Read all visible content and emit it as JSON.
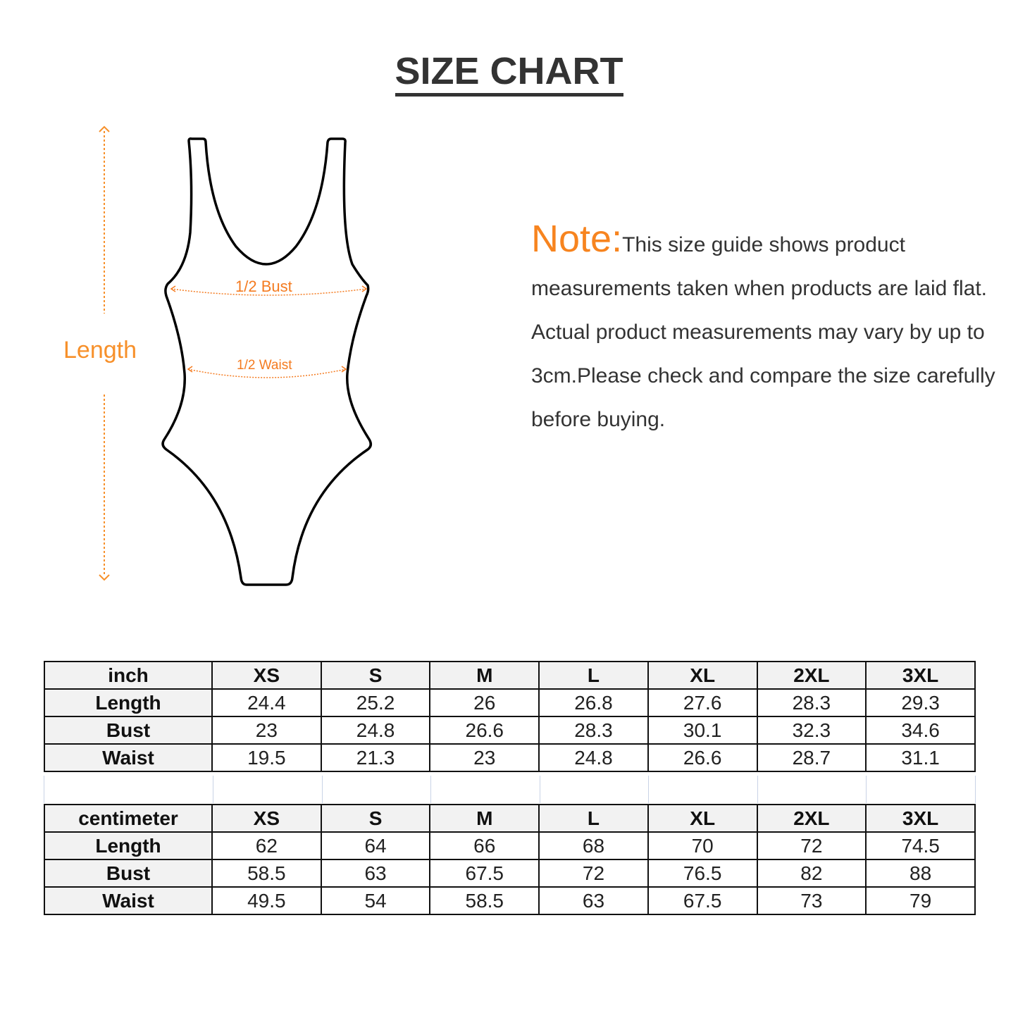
{
  "title": "SIZE CHART",
  "diagram": {
    "length_label": "Length",
    "bust_label": "1/2 Bust",
    "waist_label": "1/2 Waist",
    "accent_color": "#f7902a"
  },
  "note": {
    "label": "Note:",
    "text": "This size guide shows product measurements taken when products are laid flat. Actual product measurements may vary by up to 3cm.Please check and compare the size carefully before buying."
  },
  "tables": [
    {
      "unit": "inch",
      "sizes": [
        "XS",
        "S",
        "M",
        "L",
        "XL",
        "2XL",
        "3XL"
      ],
      "rows": [
        {
          "label": "Length",
          "values": [
            "24.4",
            "25.2",
            "26",
            "26.8",
            "27.6",
            "28.3",
            "29.3"
          ]
        },
        {
          "label": "Bust",
          "values": [
            "23",
            "24.8",
            "26.6",
            "28.3",
            "30.1",
            "32.3",
            "34.6"
          ]
        },
        {
          "label": "Waist",
          "values": [
            "19.5",
            "21.3",
            "23",
            "24.8",
            "26.6",
            "28.7",
            "31.1"
          ]
        }
      ]
    },
    {
      "unit": "centimeter",
      "sizes": [
        "XS",
        "S",
        "M",
        "L",
        "XL",
        "2XL",
        "3XL"
      ],
      "rows": [
        {
          "label": "Length",
          "values": [
            "62",
            "64",
            "66",
            "68",
            "70",
            "72",
            "74.5"
          ]
        },
        {
          "label": "Bust",
          "values": [
            "58.5",
            "63",
            "67.5",
            "72",
            "76.5",
            "82",
            "88"
          ]
        },
        {
          "label": "Waist",
          "values": [
            "49.5",
            "54",
            "58.5",
            "63",
            "67.5",
            "73",
            "79"
          ]
        }
      ]
    }
  ]
}
